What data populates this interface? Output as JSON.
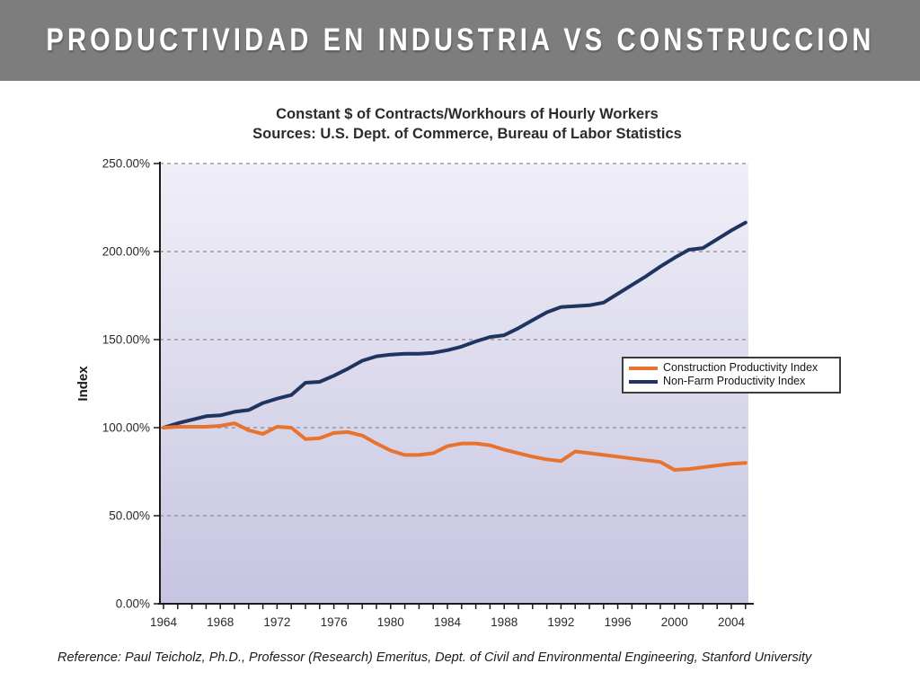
{
  "slide": {
    "title": "PRODUCTIVIDAD EN INDUSTRIA VS CONSTRUCCION",
    "banner_color": "#7d7d7d",
    "reference": "Reference: Paul Teicholz, Ph.D., Professor (Research) Emeritus, Dept. of Civil and Environmental Engineering, Stanford University"
  },
  "chart_data": {
    "type": "line",
    "title_line1": "Constant $ of Contracts/Workhours of Hourly Workers",
    "title_line2": "Sources: U.S. Dept. of Commerce, Bureau of Labor Statistics",
    "ylabel": "Index",
    "ylim": [
      0,
      250
    ],
    "ytick_step": 50,
    "ytick_labels": [
      "0.00%",
      "50.00%",
      "100.00%",
      "150.00%",
      "200.00%",
      "250.00%"
    ],
    "xtick_labels": [
      "1964",
      "1968",
      "1972",
      "1976",
      "1980",
      "1984",
      "1988",
      "1992",
      "1996",
      "2000",
      "2004"
    ],
    "grid": "horizontal-dashed",
    "grid_color": "#8a8a8a",
    "plot_bg_top": "#F0EFF8",
    "plot_bg_bottom": "#C6C4E0",
    "legend_position": "right-center",
    "x": [
      1964,
      1965,
      1966,
      1967,
      1968,
      1969,
      1970,
      1971,
      1972,
      1973,
      1974,
      1975,
      1976,
      1977,
      1978,
      1979,
      1980,
      1981,
      1982,
      1983,
      1984,
      1985,
      1986,
      1987,
      1988,
      1989,
      1990,
      1991,
      1992,
      1993,
      1994,
      1995,
      1996,
      1997,
      1998,
      1999,
      2000,
      2001,
      2002,
      2003,
      2004,
      2005
    ],
    "series": [
      {
        "name": "Construction Productivity Index",
        "color": "#E8732E",
        "values": [
          100,
          100.5,
          100.5,
          100.5,
          101,
          102.5,
          98.5,
          96.5,
          100.5,
          100,
          93.5,
          94,
          97,
          97.5,
          95.5,
          91,
          87,
          84.5,
          84.5,
          85.5,
          89.5,
          91,
          91,
          90,
          87.5,
          85.5,
          83.5,
          82,
          81,
          86.5,
          85.5,
          84.5,
          83.5,
          82.5,
          81.5,
          80.5,
          76,
          76.5,
          77.5,
          78.5,
          79.5,
          80
        ]
      },
      {
        "name": "Non-Farm Productivity Index",
        "color": "#1F3560",
        "values": [
          100,
          102.5,
          104.5,
          106.5,
          107,
          109,
          110,
          114,
          116.5,
          118.5,
          125.5,
          126,
          129.5,
          133.5,
          138,
          140.5,
          141.5,
          142,
          142,
          142.5,
          144,
          146,
          149,
          151.5,
          152.5,
          156.5,
          161,
          165.5,
          168.5,
          169,
          169.5,
          171,
          176,
          181,
          186,
          191.5,
          196.5,
          201,
          202,
          207,
          212,
          216.5
        ]
      }
    ]
  }
}
